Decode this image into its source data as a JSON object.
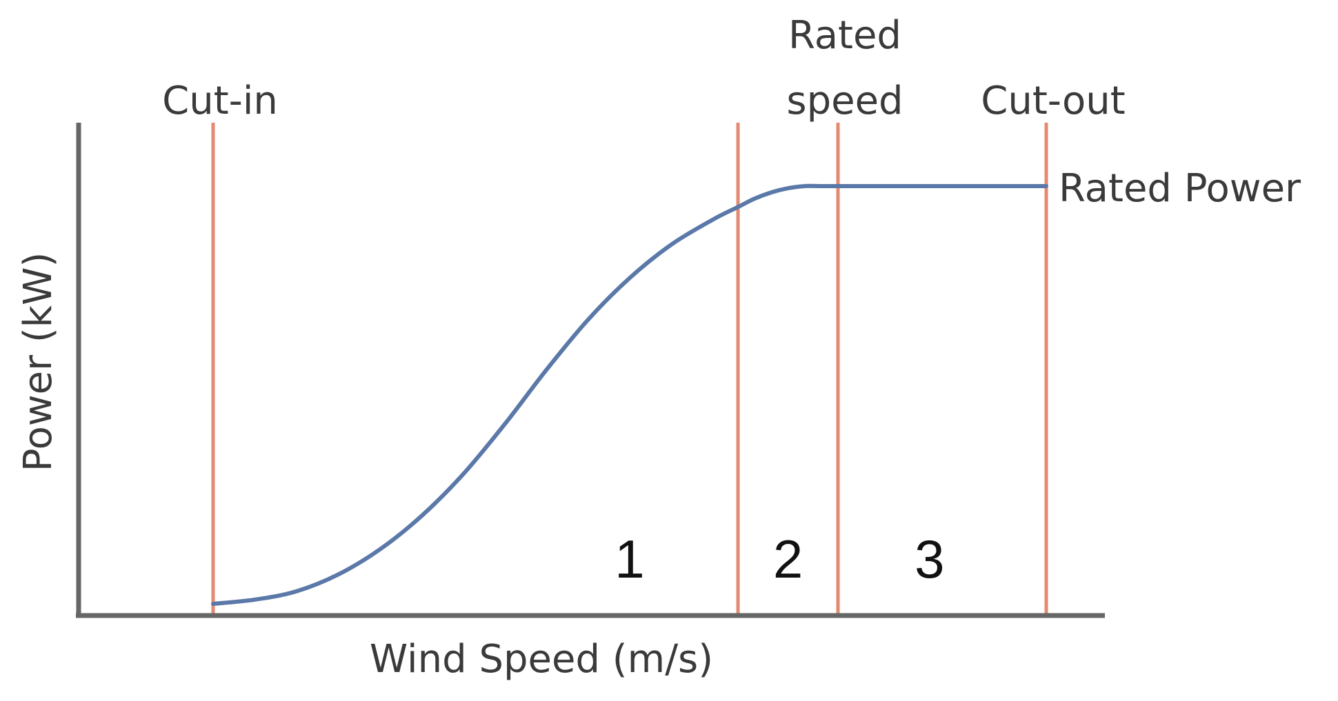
{
  "chart_data": {
    "type": "line",
    "title": "",
    "xlabel": "Wind Speed (m/s)",
    "ylabel": "Power (kW)",
    "grid": false,
    "legend": "none",
    "x_range": [
      0,
      100
    ],
    "y_range": [
      0,
      100
    ],
    "series": [
      {
        "x": [
          0,
          5,
          10,
          15,
          20,
          25,
          30,
          35,
          40,
          45,
          50,
          55,
          60,
          63,
          65,
          67,
          69,
          71,
          73,
          75,
          100
        ],
        "y": [
          0,
          1,
          3,
          7,
          13,
          21,
          31,
          43,
          56,
          68,
          78,
          86,
          92,
          95,
          97,
          98.5,
          99.5,
          100,
          100,
          100,
          100
        ]
      }
    ],
    "vertical_lines": [
      {
        "x": 0,
        "label": "Cut-in"
      },
      {
        "x": 63,
        "label": ""
      },
      {
        "x": 75,
        "label": "Rated speed",
        "label_lines": [
          "Rated",
          "speed"
        ]
      },
      {
        "x": 100,
        "label": "Cut-out"
      }
    ],
    "annotations": {
      "rated_power": "Rated Power",
      "regions": [
        {
          "label": "1",
          "x": 50
        },
        {
          "label": "2",
          "x": 69
        },
        {
          "label": "3",
          "x": 86
        }
      ]
    },
    "colors": {
      "curve": "#5a78a8",
      "markers": "#e38a72",
      "axes": "#666666",
      "text": "#3a3a3a"
    }
  }
}
